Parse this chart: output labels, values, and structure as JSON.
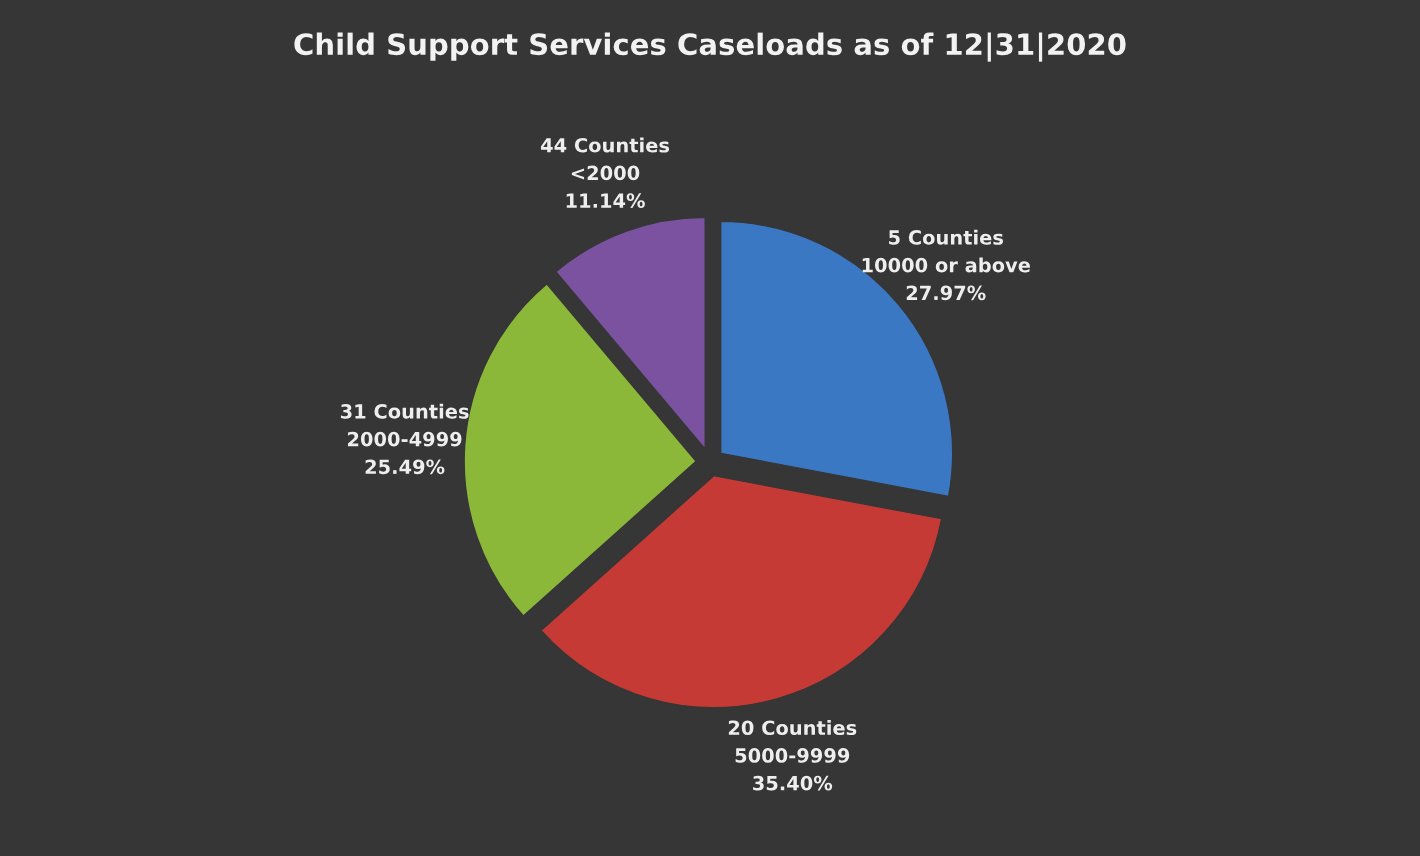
{
  "chart_data": {
    "type": "pie",
    "title": "Child Support Services Caseloads as of 12|31|2020",
    "categories": [
      "5 Counties\n10000 or above",
      "20 Counties\n5000-9999",
      "31 Counties\n2000-4999",
      "44 Counties\n<2000"
    ],
    "values": [
      27.97,
      35.4,
      25.49,
      11.14
    ],
    "value_labels": [
      "27.97%",
      "35.40%",
      "25.49%",
      "11.14%"
    ],
    "colors": [
      "#3b78c4",
      "#c63a35",
      "#8cb83a",
      "#7a52a0"
    ],
    "legend": false
  }
}
